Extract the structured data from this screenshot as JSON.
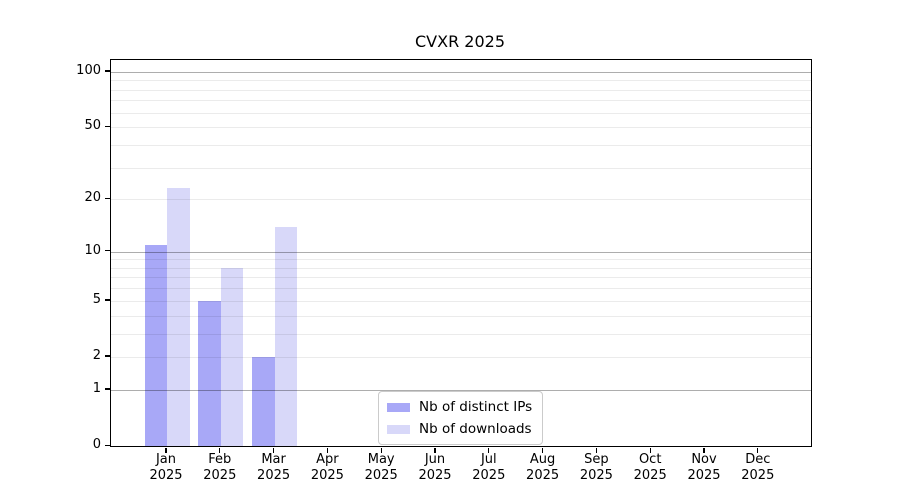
{
  "chart_data": {
    "type": "bar",
    "title": "CVXR 2025",
    "categories": [
      "Jan",
      "Feb",
      "Mar",
      "Apr",
      "May",
      "Jun",
      "Jul",
      "Aug",
      "Sep",
      "Oct",
      "Nov",
      "Dec"
    ],
    "year_label": "2025",
    "series": [
      {
        "name": "Nb of distinct IPs",
        "color": "#a8a8f7",
        "values": [
          11,
          5,
          2,
          0,
          0,
          0,
          0,
          0,
          0,
          0,
          0,
          0
        ]
      },
      {
        "name": "Nb of downloads",
        "color": "#d8d8f9",
        "values": [
          23,
          8,
          14,
          0,
          0,
          0,
          0,
          0,
          0,
          0,
          0,
          0
        ]
      }
    ],
    "yscale": "log1p",
    "ylim": [
      0,
      116
    ],
    "yticks": [
      0,
      1,
      2,
      5,
      10,
      20,
      50,
      100
    ],
    "major_gridlines": [
      1,
      10,
      100
    ],
    "minor_gridlines": [
      2,
      3,
      4,
      5,
      6,
      7,
      8,
      9,
      20,
      30,
      40,
      50,
      60,
      70,
      80,
      90
    ],
    "grid": true,
    "legend_position": "lower-center",
    "axis_color": "#000000",
    "background_color": "#ffffff"
  }
}
